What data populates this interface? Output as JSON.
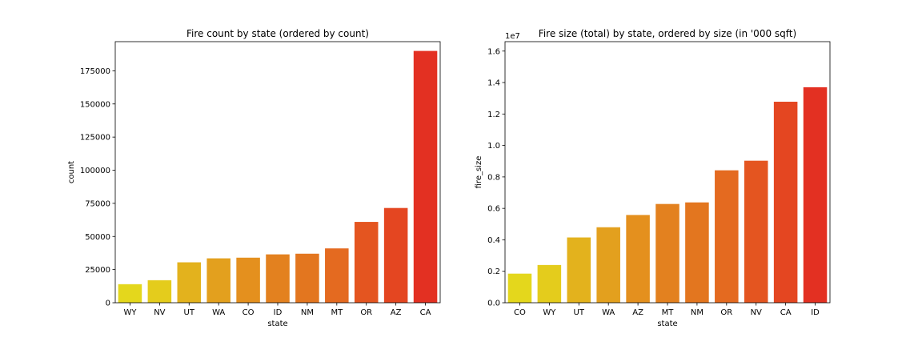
{
  "chart_data": [
    {
      "type": "bar",
      "title": "Fire count by state (ordered by count)",
      "xlabel": "state",
      "ylabel": "count",
      "categories": [
        "WY",
        "NV",
        "UT",
        "WA",
        "CO",
        "ID",
        "NM",
        "MT",
        "OR",
        "AZ",
        "CA"
      ],
      "values": [
        14000,
        17000,
        30500,
        33500,
        34000,
        36500,
        37000,
        41000,
        61000,
        71500,
        190000
      ],
      "colors": [
        "#e4d71c",
        "#e4cc1c",
        "#e3b21d",
        "#e3a01e",
        "#e4901e",
        "#e3811f",
        "#e3761f",
        "#e46a20",
        "#e45520",
        "#e44621",
        "#e33022"
      ],
      "ylim": [
        0,
        197000
      ],
      "yticks": [
        0,
        25000,
        50000,
        75000,
        100000,
        125000,
        150000,
        175000
      ],
      "ytick_labels": [
        "0",
        "25000",
        "50000",
        "75000",
        "100000",
        "125000",
        "150000",
        "175000"
      ],
      "offset_label": "",
      "grid": false,
      "legend": "none"
    },
    {
      "type": "bar",
      "title": "Fire size (total) by state, ordered by size (in '000 sqft)",
      "xlabel": "state",
      "ylabel": "fire_size",
      "categories": [
        "CO",
        "WY",
        "UT",
        "WA",
        "AZ",
        "MT",
        "NM",
        "OR",
        "NV",
        "CA",
        "ID"
      ],
      "values": [
        1850000,
        2400000,
        4150000,
        4800000,
        5580000,
        6280000,
        6380000,
        8420000,
        9030000,
        12780000,
        13700000
      ],
      "colors": [
        "#e4d71c",
        "#e4cc1c",
        "#e3b21d",
        "#e3a01e",
        "#e4901e",
        "#e3811f",
        "#e3761f",
        "#e46a20",
        "#e45520",
        "#e44621",
        "#e33022"
      ],
      "ylim": [
        0,
        16600000
      ],
      "yticks": [
        0,
        2000000,
        4000000,
        6000000,
        8000000,
        10000000,
        12000000,
        14000000,
        16000000
      ],
      "ytick_labels": [
        "0.0",
        "0.2",
        "0.4",
        "0.6",
        "0.8",
        "1.0",
        "1.2",
        "1.4",
        "1.6"
      ],
      "offset_label": "1e7",
      "grid": false,
      "legend": "none"
    }
  ]
}
